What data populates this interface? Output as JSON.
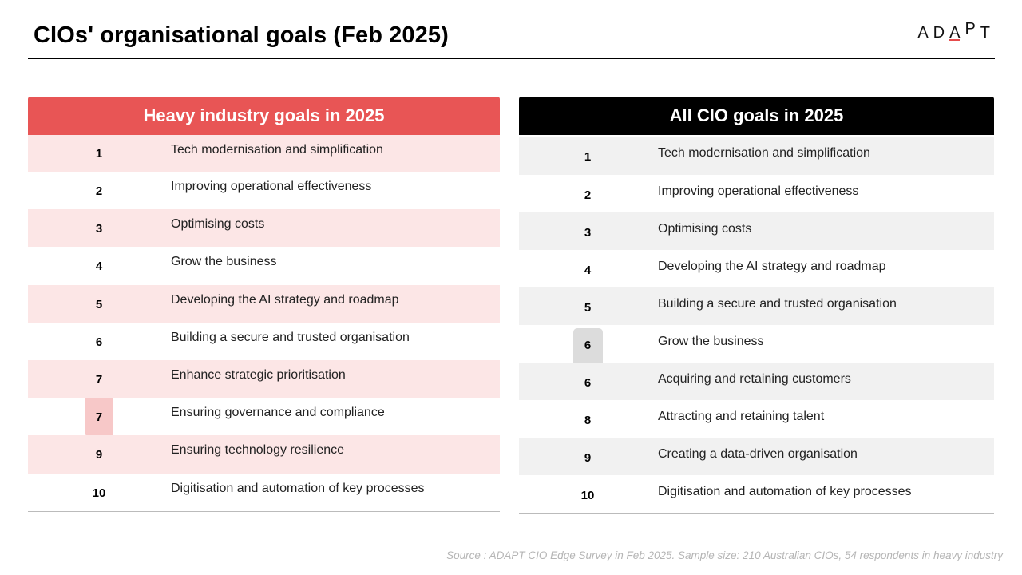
{
  "title": "CIOs' organisational goals (Feb 2025)",
  "logo": {
    "text": "ADAPT",
    "accent_color": "#e64c4c"
  },
  "heavy_industry": {
    "header": "Heavy industry goals in 2025",
    "header_color": "#e85555",
    "rows": [
      {
        "rank": "1",
        "goal": "Tech modernisation and simplification"
      },
      {
        "rank": "2",
        "goal": "Improving operational effectiveness"
      },
      {
        "rank": "3",
        "goal": "Optimising costs"
      },
      {
        "rank": "4",
        "goal": "Grow the business"
      },
      {
        "rank": "5",
        "goal": "Developing the AI strategy and roadmap"
      },
      {
        "rank": "6",
        "goal": "Building a secure and trusted organisation"
      },
      {
        "rank": "7",
        "goal": "Enhance strategic prioritisation"
      },
      {
        "rank": "7",
        "goal": "Ensuring governance and compliance"
      },
      {
        "rank": "9",
        "goal": "Ensuring technology resilience"
      },
      {
        "rank": "10",
        "goal": "Digitisation and automation of key processes"
      }
    ]
  },
  "all_cio": {
    "header": "All CIO goals in 2025",
    "header_color": "#000000",
    "rows": [
      {
        "rank": "1",
        "goal": "Tech modernisation and simplification"
      },
      {
        "rank": "2",
        "goal": "Improving operational effectiveness"
      },
      {
        "rank": "3",
        "goal": "Optimising costs"
      },
      {
        "rank": "4",
        "goal": "Developing the AI strategy and roadmap"
      },
      {
        "rank": "5",
        "goal": "Building a secure and trusted organisation"
      },
      {
        "rank": "6",
        "goal": "Grow the business"
      },
      {
        "rank": "6",
        "goal": "Acquiring and retaining customers"
      },
      {
        "rank": "8",
        "goal": "Attracting and retaining talent"
      },
      {
        "rank": "9",
        "goal": "Creating a data-driven organisation"
      },
      {
        "rank": "10",
        "goal": "Digitisation and automation of key processes"
      }
    ]
  },
  "source": "Source : ADAPT CIO Edge Survey in Feb 2025. Sample size: 210 Australian CIOs, 54 respondents in heavy industry"
}
